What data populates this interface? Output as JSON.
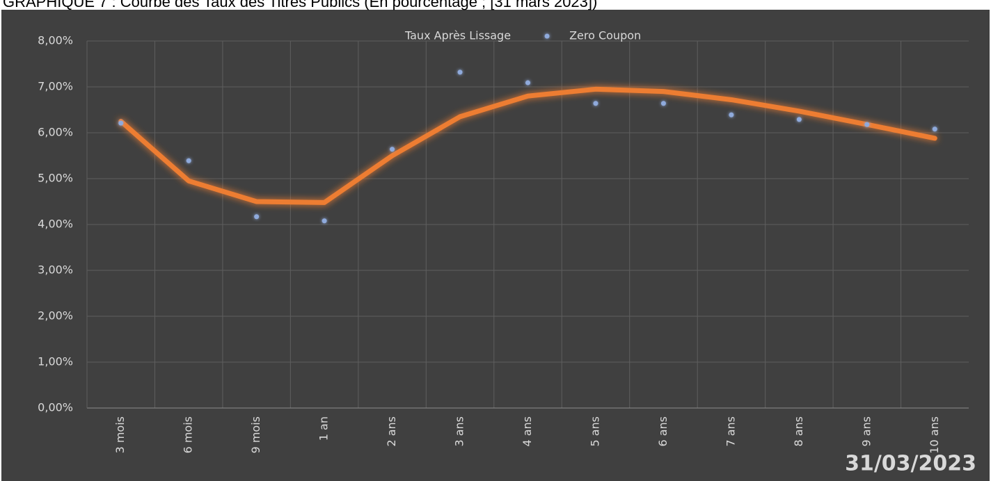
{
  "chart_data": {
    "type": "line",
    "title": "GRAPHIQUE 7 : Courbe des Taux des Titres Publics (En pourcentage ; [31 mars 2023])",
    "annotation": "31/03/2023",
    "categories": [
      "3 mois",
      "6 mois",
      "9 mois",
      "1 an",
      "2 ans",
      "3 ans",
      "4 ans",
      "5 ans",
      "6 ans",
      "7 ans",
      "8 ans",
      "9 ans",
      "10 ans"
    ],
    "series": [
      {
        "name": "Taux Après Lissage",
        "color": "#ed7d31",
        "style": "line",
        "values": [
          6.25,
          4.95,
          4.5,
          4.48,
          5.5,
          6.35,
          6.8,
          6.95,
          6.9,
          6.72,
          6.47,
          6.18,
          5.88
        ]
      },
      {
        "name": "Zero Coupon",
        "color": "#8faadc",
        "style": "markers",
        "values": [
          6.21,
          5.39,
          4.17,
          4.08,
          5.64,
          7.32,
          7.09,
          6.64,
          6.64,
          6.39,
          6.29,
          6.18,
          6.08
        ]
      }
    ],
    "ylim": [
      0,
      8
    ],
    "yticks": [
      {
        "value": 0,
        "label": "0,00%"
      },
      {
        "value": 1,
        "label": "1,00%"
      },
      {
        "value": 2,
        "label": "2,00%"
      },
      {
        "value": 3,
        "label": "3,00%"
      },
      {
        "value": 4,
        "label": "4,00%"
      },
      {
        "value": 5,
        "label": "5,00%"
      },
      {
        "value": 6,
        "label": "6,00%"
      },
      {
        "value": 7,
        "label": "7,00%"
      },
      {
        "value": 8,
        "label": "8,00%"
      }
    ],
    "grid": true,
    "legend": "top"
  }
}
